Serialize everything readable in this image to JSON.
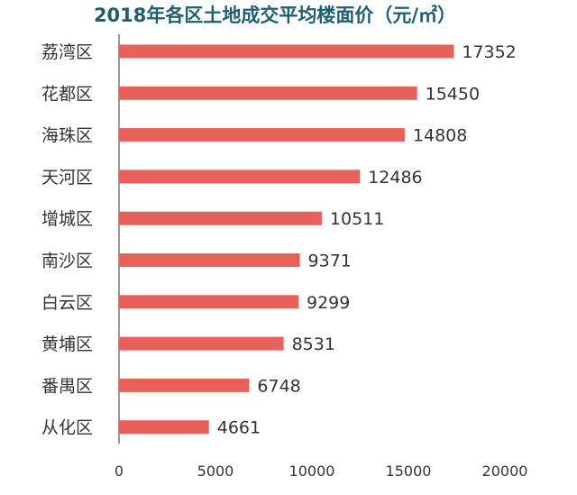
{
  "chart_data": {
    "type": "bar",
    "orientation": "horizontal",
    "title": "2018年各区土地成交平均楼面价（元/㎡）",
    "xlabel": "",
    "ylabel": "",
    "categories": [
      "荔湾区",
      "花都区",
      "海珠区",
      "天河区",
      "增城区",
      "南沙区",
      "白云区",
      "黄埔区",
      "番禺区",
      "从化区"
    ],
    "values": [
      17352,
      15450,
      14808,
      12486,
      10511,
      9371,
      9299,
      8531,
      6748,
      4661
    ],
    "value_labels": [
      "17352",
      "15450",
      "14808",
      "12486",
      "10511",
      "9371",
      "9299",
      "8531",
      "6748",
      "4661"
    ],
    "xlim": [
      0,
      20000
    ],
    "xticks": [
      0,
      5000,
      10000,
      15000,
      20000
    ],
    "xtick_labels": [
      "0",
      "5000",
      "10000",
      "15000",
      "20000"
    ],
    "grid": false,
    "legend": "none",
    "colors": {
      "bar": "#e8605a",
      "axis": "#555555",
      "title": "#1f5f73"
    }
  }
}
